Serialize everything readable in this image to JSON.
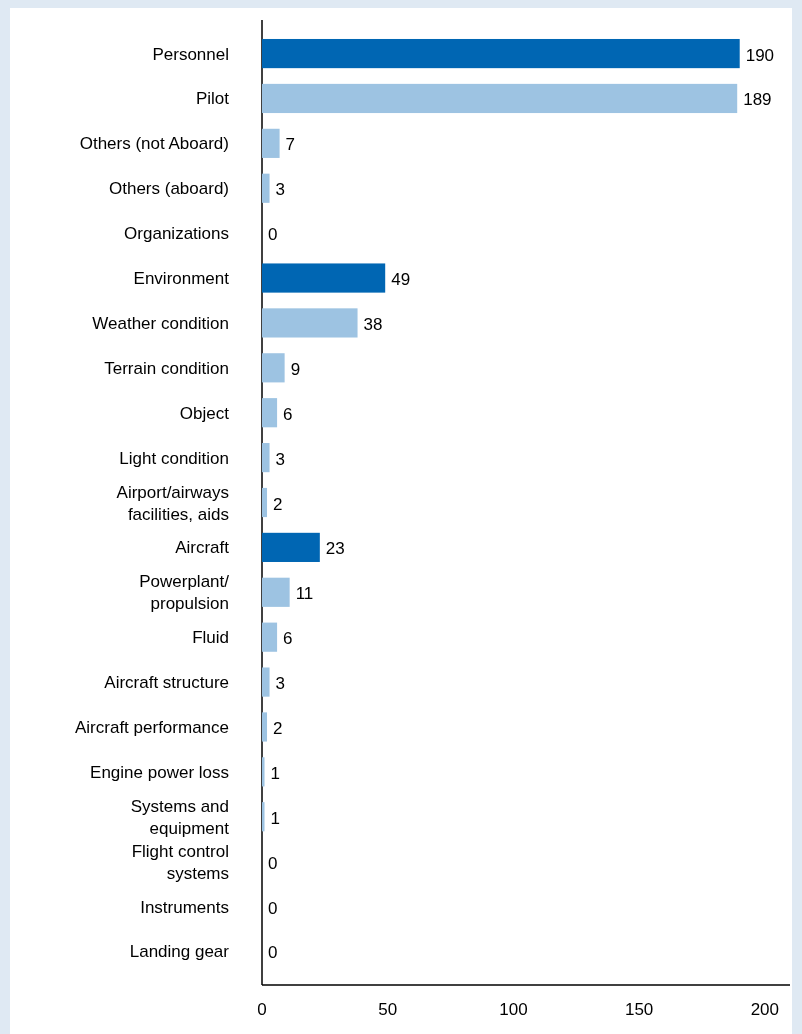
{
  "chart_data": {
    "type": "bar",
    "orientation": "horizontal",
    "categories": [
      "Personnel",
      "Pilot",
      "Others (not Aboard)",
      "Others (aboard)",
      "Organizations",
      "Environment",
      "Weather condition",
      "Terrain condition",
      "Object",
      "Light condition",
      "Airport/airways\nfacilities, aids",
      "Aircraft",
      "Powerplant/\npropulsion",
      "Fluid",
      "Aircraft structure",
      "Aircraft performance",
      "Engine power loss",
      "Systems and\nequipment",
      "Flight control\nsystems",
      "Instruments",
      "Landing gear"
    ],
    "values": [
      190,
      189,
      7,
      3,
      0,
      49,
      38,
      9,
      6,
      3,
      2,
      23,
      11,
      6,
      3,
      2,
      1,
      1,
      0,
      0,
      0
    ],
    "colors": [
      "#0066b3",
      "#9dc3e2",
      "#9dc3e2",
      "#9dc3e2",
      "#9dc3e2",
      "#0066b3",
      "#9dc3e2",
      "#9dc3e2",
      "#9dc3e2",
      "#9dc3e2",
      "#9dc3e2",
      "#0066b3",
      "#9dc3e2",
      "#9dc3e2",
      "#9dc3e2",
      "#9dc3e2",
      "#9dc3e2",
      "#9dc3e2",
      "#9dc3e2",
      "#9dc3e2",
      "#9dc3e2"
    ],
    "xlim": [
      0,
      210
    ],
    "xticks": [
      0,
      50,
      100,
      150,
      200
    ],
    "data_labels": true
  }
}
